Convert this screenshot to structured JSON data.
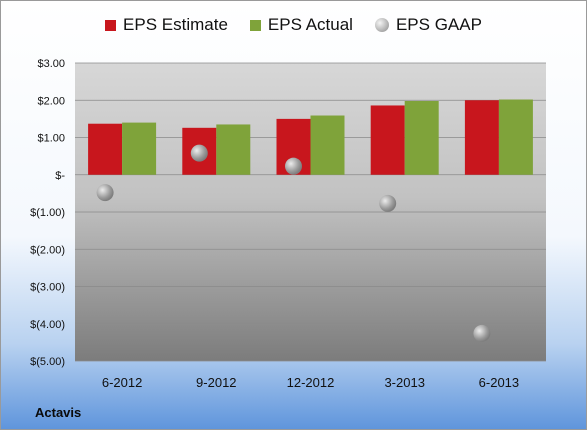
{
  "company": "Actavis",
  "colors": {
    "estimate": "#c8161d",
    "actual": "#7fa33a",
    "gaap": "#9e9e9e"
  },
  "chart_data": {
    "type": "bar",
    "title": "",
    "xlabel": "",
    "ylabel": "",
    "categories": [
      "6-2012",
      "9-2012",
      "12-2012",
      "3-2013",
      "6-2013"
    ],
    "series": [
      {
        "name": "EPS Estimate",
        "type": "bar",
        "values": [
          1.37,
          1.26,
          1.5,
          1.86,
          2.0
        ]
      },
      {
        "name": "EPS Actual",
        "type": "bar",
        "values": [
          1.4,
          1.35,
          1.59,
          1.98,
          2.02
        ]
      },
      {
        "name": "EPS GAAP",
        "type": "scatter",
        "values": [
          -0.48,
          0.58,
          0.23,
          -0.77,
          -4.26
        ]
      }
    ],
    "ylim": [
      -5,
      3
    ],
    "yticks": [
      3,
      2,
      1,
      0,
      -1,
      -2,
      -3,
      -4,
      -5
    ],
    "ytick_labels": [
      "$3.00",
      "$2.00",
      "$1.00",
      "$-",
      "$(1.00)",
      "$(2.00)",
      "$(3.00)",
      "$(4.00)",
      "$(5.00)"
    ],
    "grid": true,
    "legend": "top"
  }
}
